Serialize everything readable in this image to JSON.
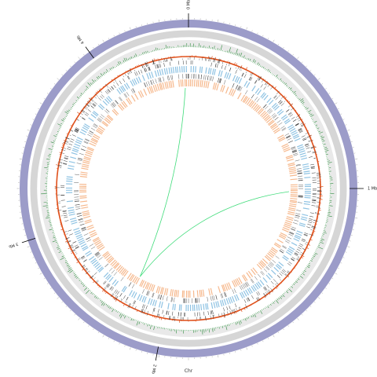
{
  "chromosome_label": "Chr",
  "major_ticks": [
    {
      "label": "0 Mb",
      "fraction": 0.0
    },
    {
      "label": "1 Mb",
      "fraction": 0.25
    },
    {
      "label": "2 Mb",
      "fraction": 0.53
    },
    {
      "label": "3 Mb",
      "fraction": 0.7
    },
    {
      "label": "4 Mb",
      "fraction": 0.9
    }
  ],
  "colors": {
    "ideogram": "#9c9cc9",
    "gray_band_outer": "#d6d6d6",
    "gray_band_inner": "#e9e9e9",
    "gc_skew": "#2e8b3e",
    "gc_content": "#e0521d",
    "gene_marks": "#333333",
    "forward_genes": "#8fc3e3",
    "reverse_genes": "#f6b98e",
    "links": "#3fdc7a"
  },
  "links": [
    {
      "from_fraction": 0.995,
      "to_fraction": 0.58
    },
    {
      "from_fraction": 0.255,
      "to_fraction": 0.58
    }
  ]
}
